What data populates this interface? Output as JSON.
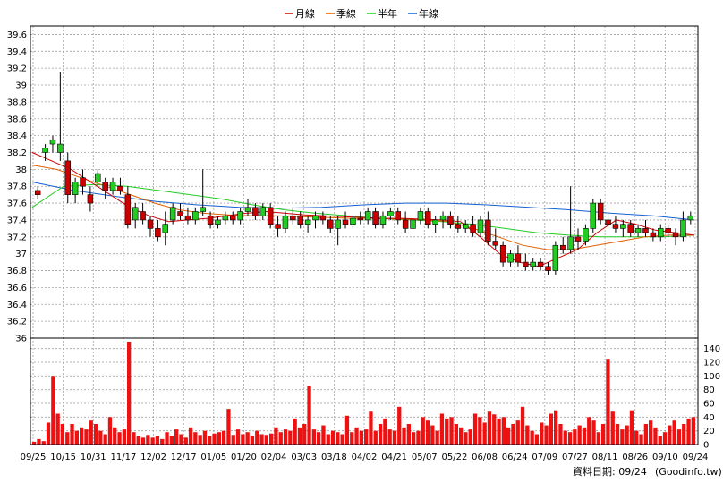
{
  "chart_data": [
    {
      "type": "candlestick",
      "legend": [
        {
          "name": "月線",
          "color": "#cc0000"
        },
        {
          "name": "季線",
          "color": "#e06000"
        },
        {
          "name": "半年",
          "color": "#22cc22"
        },
        {
          "name": "年線",
          "color": "#1560d0"
        }
      ],
      "ylim": [
        36,
        39.7
      ],
      "y_ticks": [
        "39.6",
        "39.4",
        "39.2",
        "39",
        "38.8",
        "38.6",
        "38.4",
        "38.2",
        "38",
        "37.8",
        "37.6",
        "37.4",
        "37.2",
        "37",
        "36.8",
        "36.6",
        "36.4",
        "36.2",
        "36"
      ],
      "x_ticks": [
        "09/25",
        "10/15",
        "10/31",
        "11/17",
        "12/02",
        "12/17",
        "01/05",
        "01/20",
        "02/04",
        "03/03",
        "03/18",
        "04/02",
        "04/21",
        "05/07",
        "05/22",
        "06/08",
        "06/24",
        "07/09",
        "07/27",
        "08/11",
        "08/26",
        "09/10",
        "09/24"
      ],
      "grid": true,
      "ohlc_series": [
        [
          37.75,
          37.8,
          37.65,
          37.7
        ],
        [
          38.2,
          38.3,
          38.1,
          38.25
        ],
        [
          38.3,
          38.4,
          38.2,
          38.35
        ],
        [
          38.2,
          39.15,
          38.1,
          38.3
        ],
        [
          38.1,
          38.2,
          37.6,
          37.7
        ],
        [
          37.7,
          37.9,
          37.6,
          37.85
        ],
        [
          37.9,
          38.0,
          37.7,
          37.8
        ],
        [
          37.7,
          37.8,
          37.5,
          37.6
        ],
        [
          37.85,
          38.0,
          37.8,
          37.95
        ],
        [
          37.85,
          37.9,
          37.65,
          37.75
        ],
        [
          37.75,
          37.9,
          37.7,
          37.85
        ],
        [
          37.8,
          37.9,
          37.7,
          37.75
        ],
        [
          37.7,
          37.8,
          37.3,
          37.35
        ],
        [
          37.4,
          37.6,
          37.3,
          37.55
        ],
        [
          37.5,
          37.6,
          37.35,
          37.4
        ],
        [
          37.4,
          37.45,
          37.2,
          37.3
        ],
        [
          37.3,
          37.4,
          37.15,
          37.2
        ],
        [
          37.25,
          37.5,
          37.1,
          37.35
        ],
        [
          37.4,
          37.6,
          37.35,
          37.55
        ],
        [
          37.5,
          37.6,
          37.4,
          37.45
        ],
        [
          37.45,
          37.55,
          37.35,
          37.4
        ],
        [
          37.4,
          37.55,
          37.35,
          37.5
        ],
        [
          37.5,
          38.0,
          37.45,
          37.55
        ],
        [
          37.45,
          37.5,
          37.3,
          37.35
        ],
        [
          37.35,
          37.45,
          37.3,
          37.4
        ],
        [
          37.4,
          37.5,
          37.35,
          37.45
        ],
        [
          37.45,
          37.5,
          37.35,
          37.4
        ],
        [
          37.4,
          37.55,
          37.35,
          37.5
        ],
        [
          37.5,
          37.65,
          37.45,
          37.55
        ],
        [
          37.55,
          37.6,
          37.4,
          37.45
        ],
        [
          37.45,
          37.6,
          37.4,
          37.55
        ],
        [
          37.55,
          37.6,
          37.3,
          37.35
        ],
        [
          37.35,
          37.45,
          37.2,
          37.3
        ],
        [
          37.3,
          37.5,
          37.25,
          37.45
        ],
        [
          37.45,
          37.55,
          37.35,
          37.4
        ],
        [
          37.45,
          37.5,
          37.3,
          37.35
        ],
        [
          37.35,
          37.45,
          37.25,
          37.4
        ],
        [
          37.4,
          37.5,
          37.3,
          37.45
        ],
        [
          37.45,
          37.5,
          37.35,
          37.4
        ],
        [
          37.4,
          37.45,
          37.25,
          37.3
        ],
        [
          37.3,
          37.45,
          37.1,
          37.4
        ],
        [
          37.4,
          37.5,
          37.3,
          37.35
        ],
        [
          37.35,
          37.45,
          37.3,
          37.42
        ],
        [
          37.42,
          37.5,
          37.35,
          37.4
        ],
        [
          37.4,
          37.55,
          37.35,
          37.5
        ],
        [
          37.5,
          37.55,
          37.3,
          37.35
        ],
        [
          37.35,
          37.5,
          37.3,
          37.45
        ],
        [
          37.45,
          37.55,
          37.4,
          37.5
        ],
        [
          37.5,
          37.55,
          37.35,
          37.4
        ],
        [
          37.4,
          37.5,
          37.25,
          37.3
        ],
        [
          37.3,
          37.45,
          37.25,
          37.4
        ],
        [
          37.4,
          37.55,
          37.35,
          37.5
        ],
        [
          37.5,
          37.55,
          37.3,
          37.35
        ],
        [
          37.35,
          37.45,
          37.25,
          37.4
        ],
        [
          37.4,
          37.5,
          37.3,
          37.45
        ],
        [
          37.45,
          37.5,
          37.3,
          37.35
        ],
        [
          37.35,
          37.45,
          37.25,
          37.3
        ],
        [
          37.3,
          37.4,
          37.25,
          37.35
        ],
        [
          37.35,
          37.45,
          37.2,
          37.25
        ],
        [
          37.25,
          37.45,
          37.2,
          37.4
        ],
        [
          37.4,
          37.5,
          37.1,
          37.15
        ],
        [
          37.15,
          37.3,
          37.05,
          37.1
        ],
        [
          37.1,
          37.15,
          36.85,
          36.9
        ],
        [
          36.9,
          37.05,
          36.85,
          37.0
        ],
        [
          37.0,
          37.1,
          36.85,
          36.9
        ],
        [
          36.9,
          37.0,
          36.8,
          36.85
        ],
        [
          36.85,
          36.95,
          36.8,
          36.9
        ],
        [
          36.9,
          36.95,
          36.8,
          36.85
        ],
        [
          36.85,
          36.9,
          36.75,
          36.8
        ],
        [
          36.8,
          37.15,
          36.75,
          37.1
        ],
        [
          37.1,
          37.2,
          37.0,
          37.05
        ],
        [
          37.05,
          37.8,
          37.0,
          37.2
        ],
        [
          37.2,
          37.3,
          37.05,
          37.15
        ],
        [
          37.15,
          37.35,
          37.1,
          37.3
        ],
        [
          37.3,
          37.65,
          37.25,
          37.6
        ],
        [
          37.6,
          37.65,
          37.35,
          37.4
        ],
        [
          37.4,
          37.5,
          37.3,
          37.35
        ],
        [
          37.35,
          37.45,
          37.25,
          37.3
        ],
        [
          37.3,
          37.4,
          37.2,
          37.35
        ],
        [
          37.35,
          37.4,
          37.2,
          37.25
        ],
        [
          37.25,
          37.35,
          37.2,
          37.3
        ],
        [
          37.3,
          37.4,
          37.2,
          37.25
        ],
        [
          37.25,
          37.3,
          37.15,
          37.2
        ],
        [
          37.2,
          37.35,
          37.15,
          37.3
        ],
        [
          37.3,
          37.35,
          37.2,
          37.25
        ],
        [
          37.25,
          37.3,
          37.1,
          37.2
        ],
        [
          37.2,
          37.5,
          37.15,
          37.4
        ],
        [
          37.4,
          37.5,
          37.35,
          37.45
        ]
      ],
      "ma_month": [
        38.2,
        38.1,
        38.0,
        37.85,
        37.7,
        37.55,
        37.45,
        37.38,
        37.4,
        37.42,
        37.45,
        37.48,
        37.5,
        37.48,
        37.46,
        37.45,
        37.44,
        37.43,
        37.42,
        37.42,
        37.41,
        37.4,
        37.38,
        37.2,
        37.0,
        36.9,
        36.85,
        36.95,
        37.05,
        37.25,
        37.4,
        37.35,
        37.28,
        37.25,
        37.22
      ],
      "ma_quarter": [
        38.05,
        38.0,
        37.9,
        37.8,
        37.7,
        37.6,
        37.52,
        37.48,
        37.46,
        37.45,
        37.45,
        37.44,
        37.43,
        37.42,
        37.42,
        37.41,
        37.4,
        37.38,
        37.3,
        37.2,
        37.1,
        37.05,
        37.05,
        37.1,
        37.15,
        37.2,
        37.22,
        37.22
      ],
      "ma_half": [
        37.55,
        37.8,
        37.82,
        37.8,
        37.75,
        37.7,
        37.65,
        37.58,
        37.52,
        37.48,
        37.45,
        37.42,
        37.4,
        37.38,
        37.35,
        37.3,
        37.25,
        37.22,
        37.2,
        37.2,
        37.2,
        37.22
      ],
      "ma_year": [
        37.85,
        37.75,
        37.68,
        37.62,
        37.58,
        37.55,
        37.54,
        37.55,
        37.58,
        37.6,
        37.6,
        37.58,
        37.55,
        37.52,
        37.48,
        37.45,
        37.4
      ],
      "volume_ylim": [
        0,
        150
      ],
      "volume_ticks": [
        "140",
        "120",
        "100",
        "80",
        "60",
        "40",
        "20",
        "0"
      ],
      "volume": [
        4,
        8,
        5,
        32,
        100,
        45,
        30,
        18,
        30,
        20,
        25,
        22,
        35,
        30,
        20,
        15,
        40,
        25,
        18,
        22,
        150,
        18,
        12,
        10,
        14,
        10,
        12,
        8,
        18,
        12,
        22,
        15,
        10,
        25,
        18,
        14,
        20,
        12,
        16,
        18,
        20,
        52,
        14,
        22,
        15,
        18,
        12,
        20,
        15,
        14,
        16,
        25,
        18,
        22,
        20,
        38,
        25,
        30,
        85,
        22,
        18,
        28,
        15,
        20,
        18,
        15,
        42,
        18,
        25,
        20,
        22,
        48,
        20,
        30,
        38,
        22,
        20,
        55,
        25,
        30,
        18,
        20,
        40,
        35,
        28,
        20,
        45,
        38,
        40,
        30,
        25
      ],
      "volume_b": [
        18,
        22,
        45,
        40,
        32,
        48,
        44,
        38,
        40,
        25,
        30,
        35,
        55,
        28,
        20,
        15,
        32,
        28,
        45,
        50,
        30,
        20,
        18,
        22,
        28,
        25,
        40,
        35,
        18,
        30,
        125,
        48,
        30,
        22,
        28,
        50,
        20,
        15,
        30,
        35,
        25,
        12,
        18,
        28,
        35,
        22,
        30,
        38,
        40
      ]
    }
  ],
  "footer": {
    "date_label": "資料日期: 09/24",
    "source": "(Goodinfo.tw)"
  },
  "colors": {
    "up": "#22cc22",
    "down": "#cc0000",
    "volume": "#ee1111",
    "grid": "#a0a0a0"
  }
}
